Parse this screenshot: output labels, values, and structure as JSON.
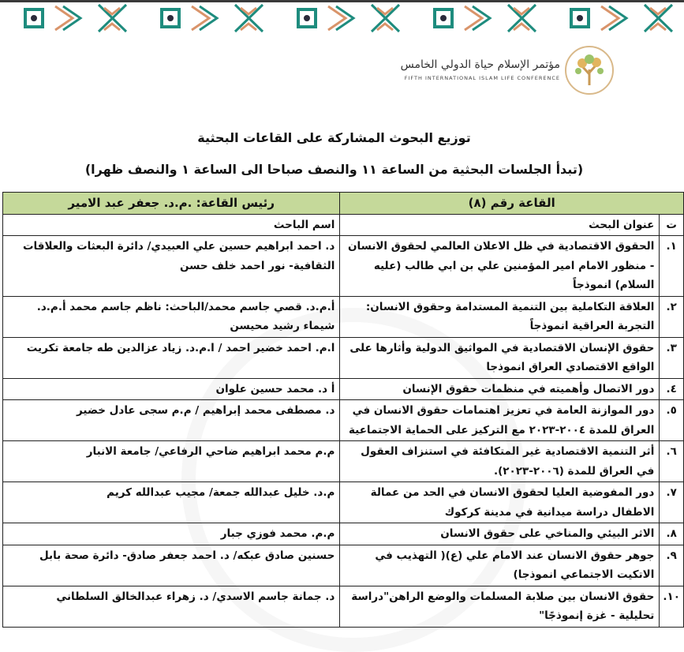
{
  "header": {
    "conference_name_ar": "مؤتمر الإسلام حياة الدولي الخامس",
    "conference_name_en": "FIFTH INTERNATIONAL ISLAM LIFE CONFERENCE"
  },
  "title": "توزيع البحوث المشاركة على القاعات البحثية",
  "subtitle": "(تبدأ الجلسات البحثية من الساعة ١١ والنصف صباحا الى الساعة ١ والنصف ظهرا)",
  "table": {
    "hall_label": "القاعة رقم (٨)",
    "chair_label": "رئيس القاعة: .م.د. جعفر عبد الامير",
    "columns": {
      "num": "ت",
      "title": "عنوان البحث",
      "researcher": "اسم الباحث"
    },
    "rows": [
      {
        "num": "١.",
        "title": "الحقوق الاقتصادية في ظل الاعلان العالمي لحقوق الانسان - منظور الامام امير المؤمنين علي بن ابي طالب (عليه السلام) انموذجاً",
        "researcher": "د. احمد ابراهيم حسين علي العبيدي/ دائرة البعثات والعلاقات الثقافية- نور احمد خلف حسن"
      },
      {
        "num": "٢.",
        "title": "العلاقة التكاملية بين التنمية المستدامة وحقوق الانسان: التجربة العراقية انموذجاً",
        "researcher": "أ.م.د. قصي جاسم محمد/الباحث: ناظم جاسم محمد أ.م.د. شيماء رشيد محيسن"
      },
      {
        "num": "٣.",
        "title": "حقوق الإنسان الاقتصادية في المواثيق الدولية وأثارها على الواقع الاقتصادي العراق انموذجا",
        "researcher": "ا.م. احمد خضير احمد / ا.م.د. زياد عزالدين طه جامعة تكريت"
      },
      {
        "num": "٤.",
        "title": "دور الاتصال وأهميته في منظمات حقوق الإنسان",
        "researcher": "أ د. محمد حسين علوان"
      },
      {
        "num": "٥.",
        "title": "دور الموازنة العامة في تعزيز اهتمامات حقوق الانسان في العراق للمدة ٢٠٠٤-٢٠٢٣ مع التركيز على الحماية الاجتماعية",
        "researcher": "د. مصطفى محمد إبراهيم / م.م سجى عادل خضير"
      },
      {
        "num": "٦.",
        "title": "أثر التنمية الاقتصادية غير المتكافئة في استنزاف العقول في العراق للمدة (٢٠٠٦-٢٠٢٣).",
        "researcher": "م.م محمد ابراهيم ضاحي الرفاعي/ جامعة الانبار"
      },
      {
        "num": "٧.",
        "title": "دور المفوضية العليا لحقوق الانسان في الحد من عمالة الاطفال دراسة ميدانية في مدينة كركوك",
        "researcher": "م.د. خليل عبدالله جمعة/ مجيب عبدالله كريم"
      },
      {
        "num": "٨.",
        "title": "الاثر البيئي والمناخي على حقوق الانسان",
        "researcher": "م.م. محمد فوزي جبار"
      },
      {
        "num": "٩.",
        "title": "جوهر حقوق الانسان عند الامام علي (ع)( التهذيب في الاتكيت الاجتماعي انموذجا)",
        "researcher": "حسنين صادق عبكه/ د. احمد جعفر صادق- دائرة صحة بابل"
      },
      {
        "num": "١٠.",
        "title": "حقوق الانسان بين صلابة المسلمات والوضع الراهن\"دراسة تحليلية - غزة إنموذجًا\"",
        "researcher": "د. جمانة جاسم الاسدي/ د. زهراء عبدالخالق السلطاني"
      }
    ]
  },
  "colors": {
    "header_bg": "#c5d99a",
    "pattern_teal": "#1e8c7e",
    "pattern_orange": "#d9946a",
    "logo_gold": "#d9b98a"
  }
}
